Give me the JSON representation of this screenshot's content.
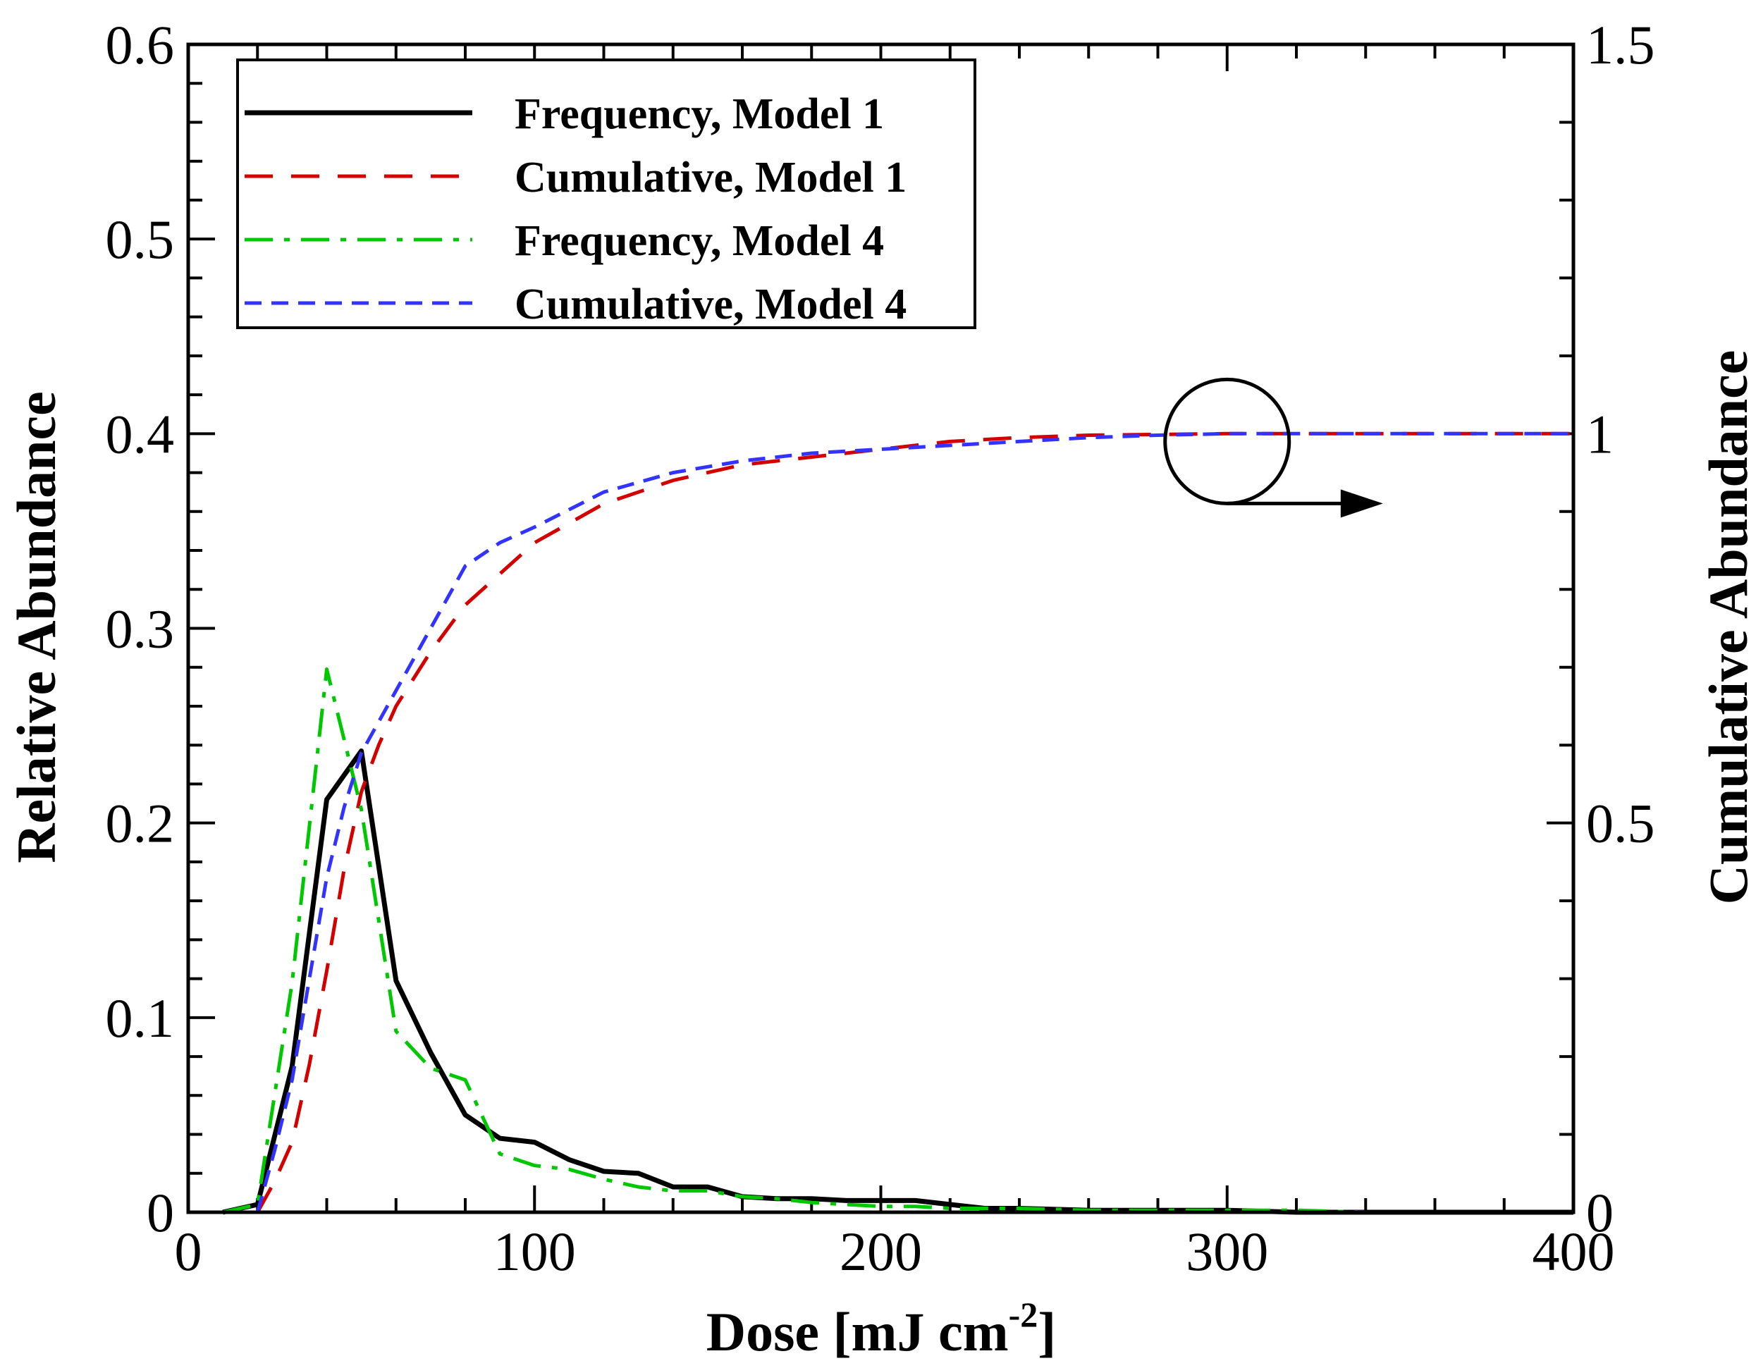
{
  "chart_data": {
    "type": "line",
    "xlabel": "Dose [mJ cm",
    "xlabel_sup": "-2",
    "xlabel_end": "]",
    "ylabel_left": "Relative Abundance",
    "ylabel_right": "Cumulative Abundance",
    "xlim": [
      0,
      400
    ],
    "ylim_left": [
      0,
      0.6
    ],
    "ylim_right": [
      0,
      1.5
    ],
    "x_ticks": [
      "0",
      "100",
      "200",
      "300",
      "400"
    ],
    "y_left_ticks": [
      "0",
      "0.1",
      "0.2",
      "0.3",
      "0.4",
      "0.5",
      "0.6"
    ],
    "y_right_ticks": [
      "0",
      "0.5",
      "1",
      "1.5"
    ],
    "legend_position": "top-left",
    "series": [
      {
        "name": "Frequency, Model 1",
        "axis": "left",
        "color": "#000000",
        "style": "solid",
        "x": [
          10,
          20,
          30,
          40,
          50,
          60,
          70,
          80,
          90,
          100,
          110,
          120,
          130,
          140,
          150,
          160,
          170,
          180,
          190,
          200,
          210,
          220,
          230,
          240,
          260,
          280,
          300,
          320,
          340,
          360,
          380,
          400
        ],
        "y": [
          0.0,
          0.004,
          0.075,
          0.212,
          0.237,
          0.119,
          0.082,
          0.05,
          0.038,
          0.036,
          0.027,
          0.021,
          0.02,
          0.013,
          0.013,
          0.008,
          0.007,
          0.007,
          0.006,
          0.006,
          0.006,
          0.004,
          0.002,
          0.002,
          0.001,
          0.001,
          0.001,
          0.0,
          0.0,
          0.0,
          0.0,
          0.0
        ]
      },
      {
        "name": "Cumulative, Model 1",
        "axis": "right",
        "color": "#d40000",
        "style": "dash",
        "x": [
          20,
          25,
          30,
          35,
          40,
          45,
          50,
          55,
          60,
          70,
          80,
          90,
          100,
          120,
          140,
          160,
          180,
          200,
          220,
          240,
          260,
          280,
          300,
          320,
          340,
          360,
          380,
          400
        ],
        "y": [
          0.0,
          0.04,
          0.09,
          0.19,
          0.31,
          0.44,
          0.54,
          0.6,
          0.65,
          0.72,
          0.78,
          0.82,
          0.86,
          0.91,
          0.94,
          0.96,
          0.97,
          0.98,
          0.99,
          0.995,
          0.998,
          0.999,
          1.0,
          1.0,
          1.0,
          1.0,
          1.0,
          1.0
        ]
      },
      {
        "name": "Frequency, Model 4",
        "axis": "left",
        "color": "#00c800",
        "style": "dashdot",
        "x": [
          10,
          20,
          30,
          40,
          50,
          60,
          70,
          80,
          90,
          100,
          110,
          120,
          130,
          140,
          150,
          160,
          170,
          180,
          190,
          200,
          210,
          220,
          230,
          240,
          260,
          280,
          300,
          320,
          340,
          360,
          380,
          400
        ],
        "y": [
          0.0,
          0.004,
          0.118,
          0.279,
          0.207,
          0.093,
          0.074,
          0.068,
          0.03,
          0.024,
          0.022,
          0.017,
          0.013,
          0.011,
          0.011,
          0.008,
          0.007,
          0.005,
          0.004,
          0.003,
          0.003,
          0.002,
          0.002,
          0.002,
          0.001,
          0.001,
          0.001,
          0.001,
          0.0,
          0.0,
          0.0,
          0.0
        ]
      },
      {
        "name": "Cumulative, Model 4",
        "axis": "right",
        "color": "#3333ff",
        "style": "shortdash",
        "x": [
          20,
          25,
          30,
          35,
          40,
          45,
          50,
          55,
          60,
          70,
          80,
          90,
          100,
          120,
          140,
          160,
          180,
          200,
          220,
          240,
          260,
          280,
          300,
          320,
          340,
          360,
          380,
          400
        ],
        "y": [
          0.0,
          0.08,
          0.17,
          0.3,
          0.43,
          0.52,
          0.59,
          0.63,
          0.67,
          0.75,
          0.83,
          0.86,
          0.88,
          0.925,
          0.95,
          0.965,
          0.975,
          0.98,
          0.985,
          0.99,
          0.995,
          0.998,
          1.0,
          1.0,
          1.0,
          1.0,
          1.0,
          1.0
        ]
      }
    ],
    "annotation": {
      "type": "circle-arrow",
      "points_to": "right-axis",
      "circle_center": {
        "x": 300,
        "y_right": 0.99
      },
      "arrow_end_x": 345
    }
  }
}
